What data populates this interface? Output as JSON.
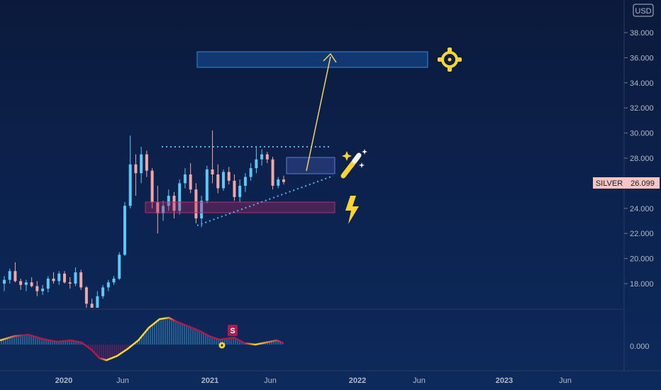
{
  "chart_data": {
    "type": "candlestick",
    "symbol": "SILVER",
    "currency": "USD",
    "last_price": "26.099",
    "y_ticks": [
      "38.000",
      "36.000",
      "34.000",
      "32.000",
      "30.000",
      "28.000",
      "26.000",
      "24.000",
      "22.000",
      "20.000",
      "18.000"
    ],
    "oscillator_tick": "0.000",
    "x_ticks": [
      "2020",
      "Jun",
      "2021",
      "Jun",
      "2022",
      "Jun",
      "2023",
      "Jun"
    ],
    "ylim": [
      16.2,
      40.2
    ],
    "candles_ohlc": [
      [
        18.0,
        18.6,
        17.4,
        18.3
      ],
      [
        18.3,
        19.2,
        18.0,
        19.0
      ],
      [
        19.0,
        19.7,
        18.1,
        18.2
      ],
      [
        18.2,
        18.4,
        17.5,
        17.9
      ],
      [
        17.9,
        18.3,
        17.4,
        18.1
      ],
      [
        18.1,
        18.5,
        17.7,
        17.8
      ],
      [
        17.8,
        18.2,
        17.0,
        17.4
      ],
      [
        17.4,
        17.9,
        17.1,
        17.6
      ],
      [
        17.6,
        18.6,
        17.3,
        18.4
      ],
      [
        18.4,
        18.9,
        18.0,
        18.2
      ],
      [
        18.2,
        19.0,
        17.9,
        18.8
      ],
      [
        18.8,
        19.0,
        18.0,
        18.1
      ],
      [
        18.1,
        18.5,
        17.6,
        18.0
      ],
      [
        18.0,
        19.3,
        17.8,
        18.9
      ],
      [
        18.9,
        19.1,
        17.5,
        17.7
      ],
      [
        17.7,
        17.8,
        16.0,
        16.4
      ],
      [
        16.4,
        16.8,
        15.2,
        15.6
      ],
      [
        15.6,
        17.4,
        15.0,
        17.0
      ],
      [
        17.0,
        17.9,
        16.8,
        17.7
      ],
      [
        17.7,
        18.3,
        17.4,
        18.1
      ],
      [
        18.1,
        18.6,
        17.9,
        18.4
      ],
      [
        18.4,
        20.5,
        18.3,
        20.3
      ],
      [
        20.3,
        24.5,
        20.2,
        24.2
      ],
      [
        24.2,
        29.8,
        24.0,
        27.5
      ],
      [
        27.5,
        28.3,
        25.0,
        26.8
      ],
      [
        26.8,
        28.9,
        26.0,
        28.3
      ],
      [
        28.3,
        28.6,
        26.5,
        27.0
      ],
      [
        27.0,
        27.2,
        24.0,
        24.5
      ],
      [
        24.5,
        25.8,
        22.0,
        23.6
      ],
      [
        23.6,
        24.6,
        23.0,
        24.2
      ],
      [
        24.2,
        25.5,
        23.8,
        25.0
      ],
      [
        25.0,
        25.3,
        23.2,
        23.8
      ],
      [
        23.8,
        26.3,
        23.5,
        26.0
      ],
      [
        26.0,
        27.2,
        25.6,
        26.7
      ],
      [
        26.7,
        27.6,
        25.2,
        25.5
      ],
      [
        25.5,
        26.0,
        22.8,
        23.2
      ],
      [
        23.2,
        25.0,
        22.5,
        24.6
      ],
      [
        24.6,
        27.4,
        24.4,
        27.1
      ],
      [
        27.1,
        30.2,
        26.0,
        26.7
      ],
      [
        26.7,
        27.5,
        25.2,
        25.6
      ],
      [
        25.6,
        27.1,
        25.4,
        26.9
      ],
      [
        26.9,
        27.3,
        25.9,
        26.2
      ],
      [
        26.2,
        26.7,
        24.6,
        24.9
      ],
      [
        24.9,
        26.3,
        24.5,
        25.8
      ],
      [
        25.8,
        26.8,
        25.3,
        26.5
      ],
      [
        26.5,
        27.6,
        26.2,
        27.2
      ],
      [
        27.2,
        28.9,
        26.8,
        27.9
      ],
      [
        27.9,
        28.7,
        27.4,
        28.3
      ],
      [
        28.3,
        28.5,
        27.6,
        27.9
      ],
      [
        27.9,
        28.1,
        25.5,
        25.8
      ],
      [
        25.8,
        26.5,
        25.6,
        26.3
      ],
      [
        26.3,
        26.6,
        25.9,
        26.1
      ]
    ],
    "annotations": {
      "resistance_level": "~29.0",
      "support_zone": "23.8–24.6",
      "entry_zone": "26.9–28.2",
      "target_zone": "35.5–36.5"
    }
  },
  "icons": {
    "target": "crosshair-target-icon",
    "magic": "magic-wand-icon",
    "signal": "lightning-bolt-icon"
  },
  "colors": {
    "up": "#5bc8f5",
    "down": "#f2a7a7",
    "label_bg": "#f7c6c4",
    "accent_yellow": "#fcd535",
    "oscillator_pink": "#b0184e"
  },
  "oscillator_marker": "S"
}
